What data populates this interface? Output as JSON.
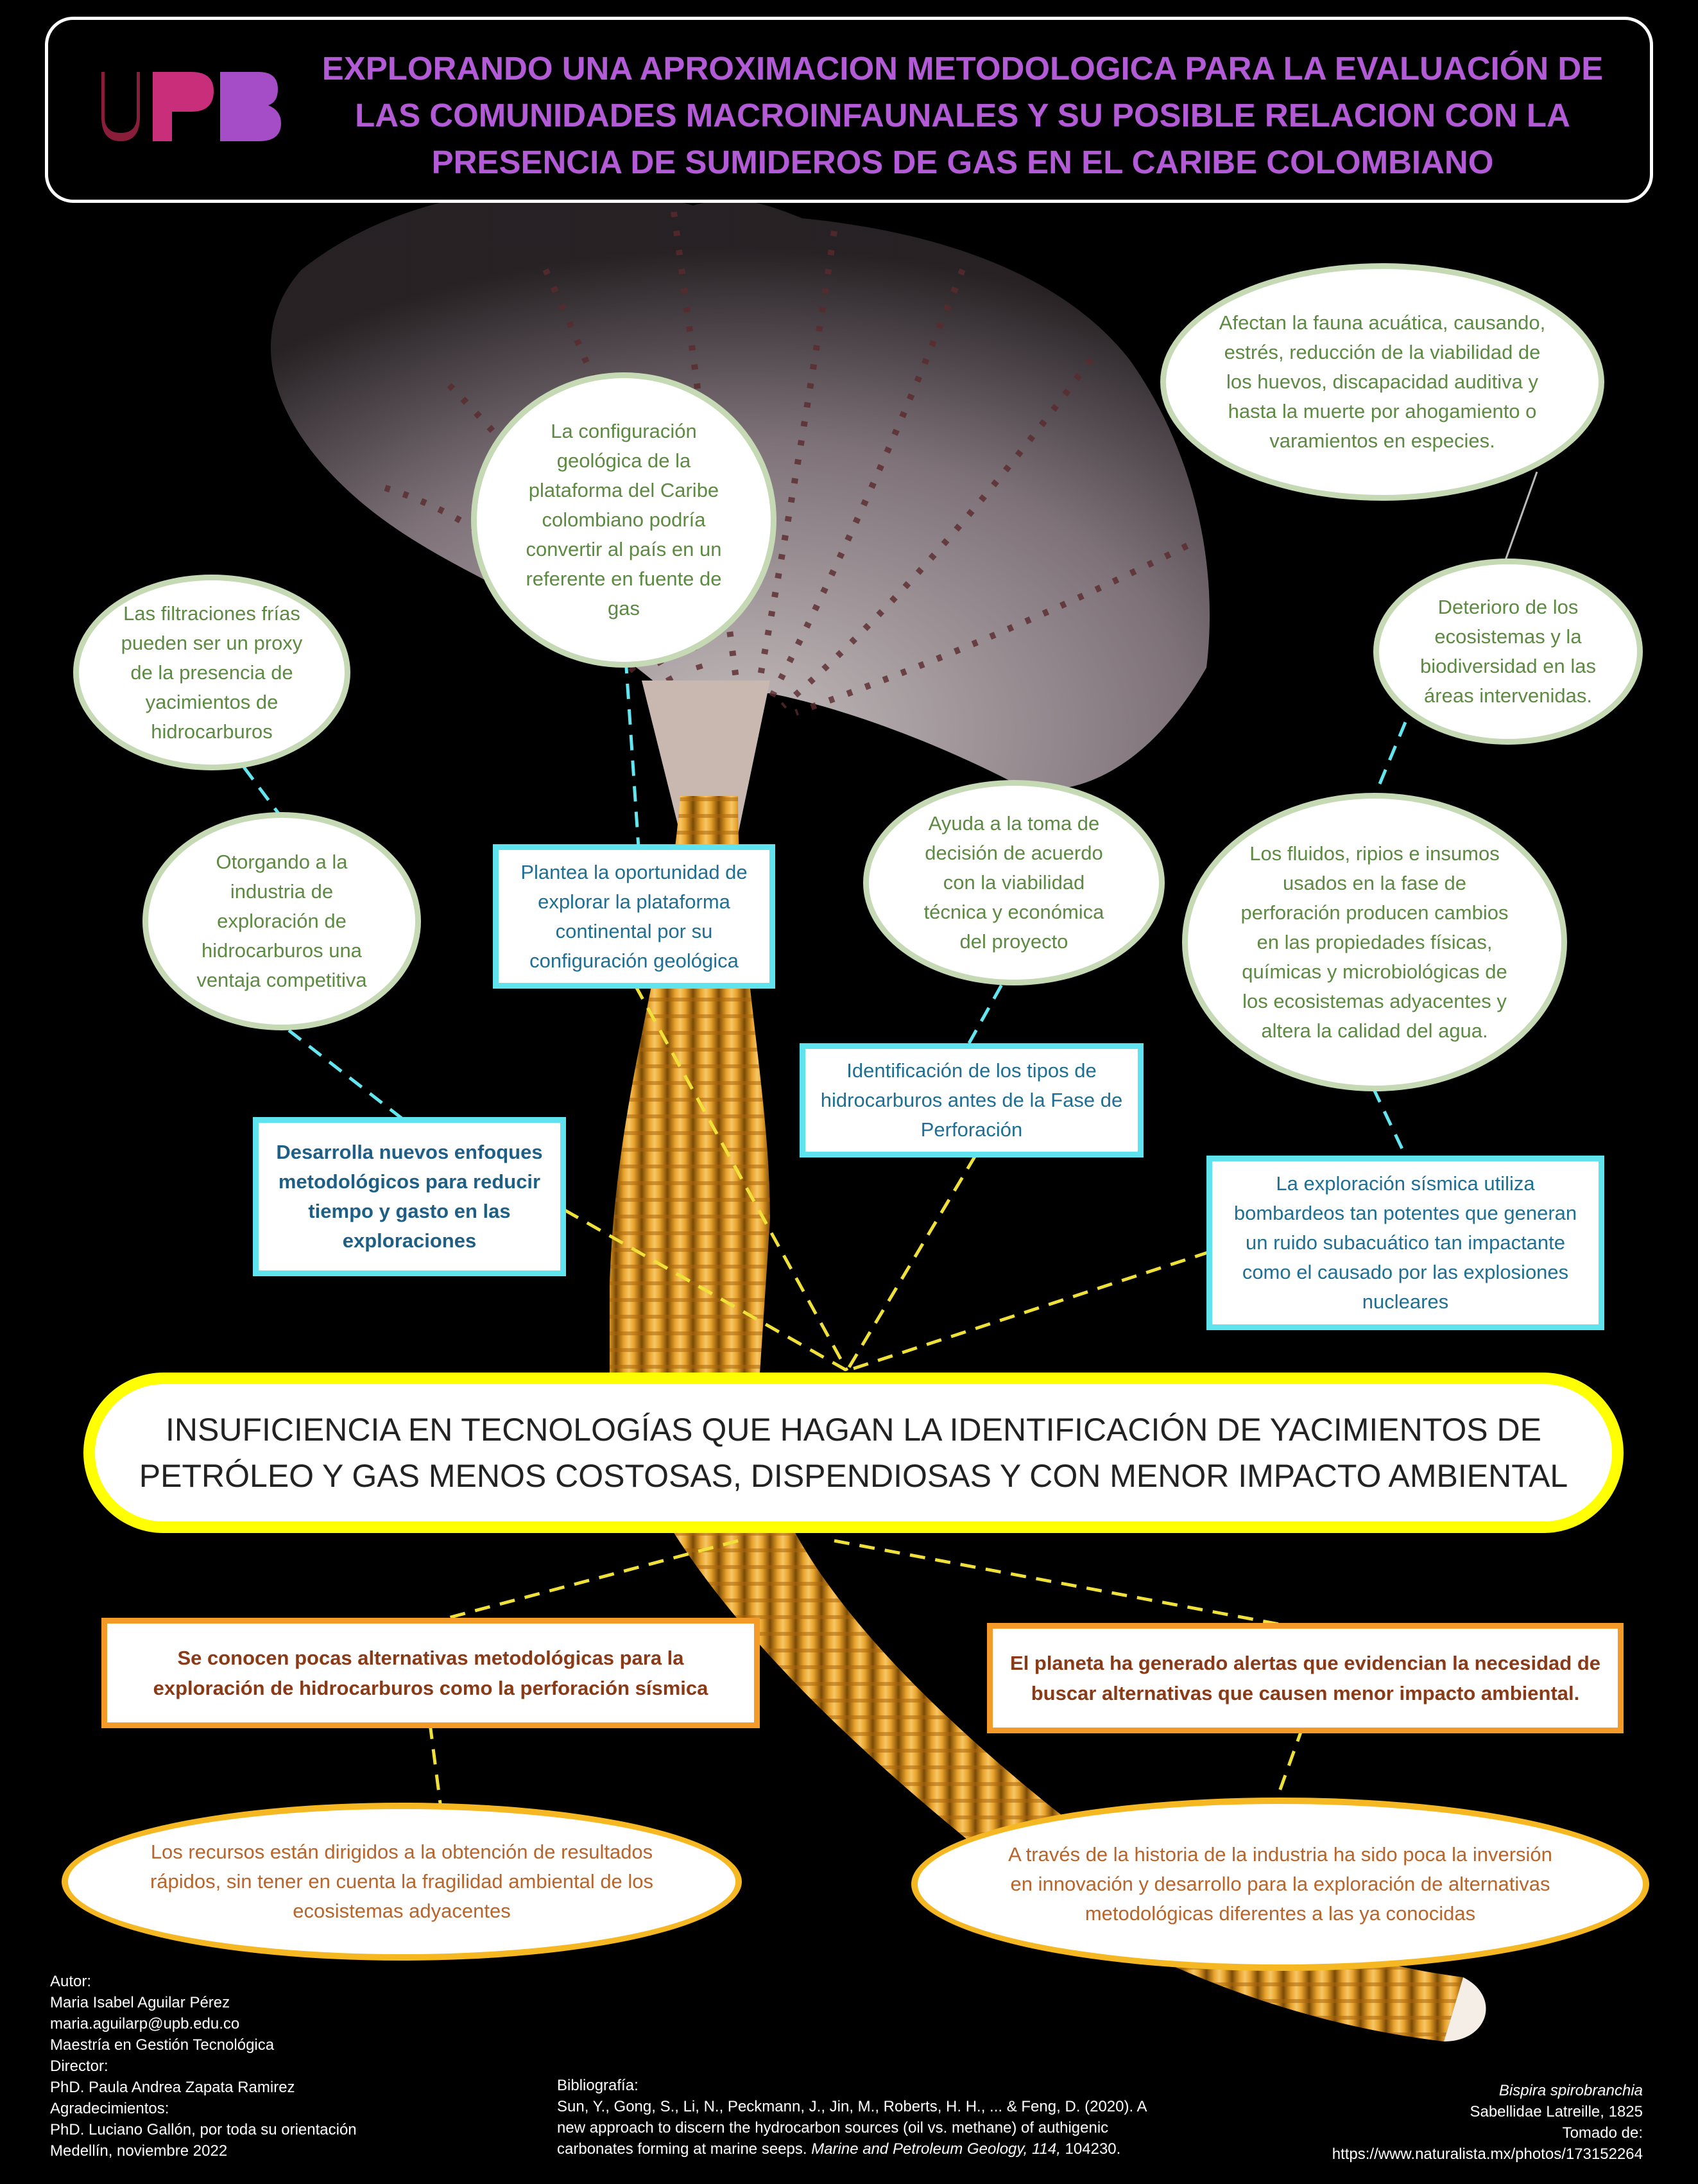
{
  "header": {
    "logo_text": "UPB",
    "title": "EXPLORANDO UNA APROXIMACION METODOLOGICA PARA LA EVALUACIÓN DE LAS COMUNIDADES MACROINFAUNALES Y SU POSIBLE RELACION CON LA PRESENCIA DE SUMIDEROS DE GAS EN EL CARIBE COLOMBIANO"
  },
  "ovals": {
    "configuracion": "La configuración geológica de la plataforma del Caribe colombiano podría convertir al país en un referente en fuente de gas",
    "fauna": "Afectan la fauna acuática, causando, estrés, reducción de la viabilidad de los huevos, discapacidad auditiva y hasta la muerte por ahogamiento o varamientos en especies.",
    "filtraciones": "Las filtraciones frías pueden ser un proxy de la presencia de yacimientos de hidrocarburos",
    "deterioro": "Deterioro de los ecosistemas y la biodiversidad en las áreas intervenidas.",
    "ayuda": "Ayuda a la toma de decisión de acuerdo con la viabilidad técnica y económica del proyecto",
    "otorgando": "Otorgando a la industria de exploración de hidrocarburos una ventaja competitiva",
    "fluidos": "Los fluidos, ripios e insumos usados en la fase de perforación producen cambios en las propiedades físicas, químicas y microbiológicas de los ecosistemas adyacentes y altera la calidad del agua."
  },
  "boxes": {
    "plantea": "Plantea la oportunidad de explorar la plataforma continental por su configuración geológica",
    "identificacion": "Identificación de los tipos de hidrocarburos antes de la Fase de Perforación",
    "desarrolla": "Desarrolla nuevos enfoques metodológicos para reducir tiempo y gasto en las exploraciones",
    "sismica": "La exploración sísmica utiliza bombardeos tan potentes que generan un ruido subacuático tan impactante como el causado por las explosiones nucleares"
  },
  "central": "INSUFICIENCIA EN TECNOLOGÍAS QUE HAGAN LA IDENTIFICACIÓN DE YACIMIENTOS DE PETRÓLEO Y GAS MENOS COSTOSAS, DISPENDIOSAS Y CON MENOR IMPACTO AMBIENTAL",
  "causes": {
    "pocas": "Se conocen pocas alternativas metodológicas para la exploración de hidrocarburos como la perforación sísmica",
    "planeta": "El planeta ha generado alertas que evidencian la necesidad de buscar alternativas que causen menor impacto ambiental.",
    "recursos": "Los recursos están dirigidos a la obtención de resultados rápidos, sin tener en cuenta la fragilidad ambiental de los ecosistemas adyacentes",
    "historia": "A través de la historia de la industria ha sido poca la inversión en innovación y desarrollo para la exploración de alternativas metodológicas diferentes a las ya conocidas"
  },
  "footer": {
    "author_lines": [
      "Autor:",
      "Maria Isabel Aguilar Pérez",
      "maria.aguilarp@upb.edu.co",
      "Maestría en Gestión Tecnológica",
      "Director:",
      "PhD. Paula Andrea Zapata Ramirez",
      "Agradecimientos:",
      "PhD. Luciano Gallón, por toda su orientación",
      "Medellín, noviembre 2022"
    ],
    "biblio_label": "Bibliografía:",
    "biblio_text_1": "Sun, Y., Gong, S., Li, N., Peckmann, J., Jin, M., Roberts, H. H., ... & Feng, D. (2020). A new approach to discern the hydrocarbon sources (oil vs. methane) of authigenic carbonates forming at marine seeps.",
    "biblio_journal": "Marine and Petroleum Geology, 114,",
    "biblio_end": "104230.",
    "species": "Bispira spirobranchia",
    "family": "Sabellidae Latreille, 1825",
    "taken": "Tomado de:",
    "url": "https://www.naturalista.mx/photos/173152264"
  },
  "colors": {
    "title": "#b35bd6",
    "oval_border": "#c5d9b4",
    "oval_text": "#5d8a42",
    "blue_border": "#5fe3ef",
    "central_border": "#ffff00",
    "orange_border": "#f39a28",
    "orange_oval_border": "#f5b823"
  }
}
